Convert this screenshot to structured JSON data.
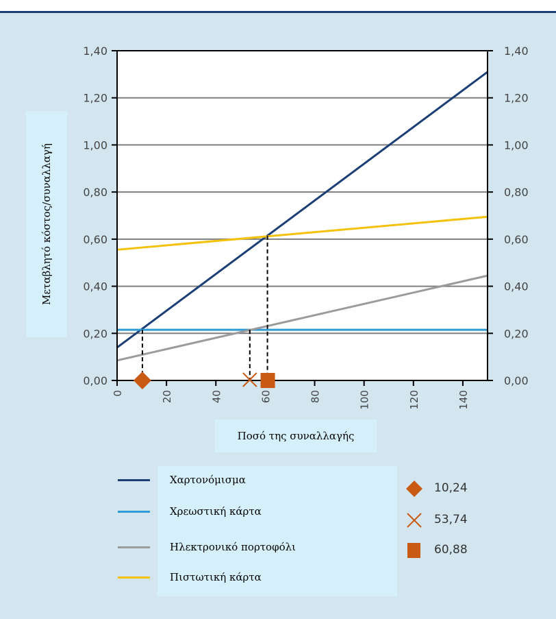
{
  "colors": {
    "background": "#d3e6ef",
    "label_box": "#d6f0fb",
    "top_line": "#1b3f75",
    "plot_bg": "#ffffff",
    "grid": "#7f7f7f",
    "marker": "#c85a14"
  },
  "chart_data": {
    "type": "line",
    "title": "",
    "xlabel": "Ποσό της συναλλαγής",
    "ylabel": "Μεταβλητό κόστος/συναλλαγή",
    "xlim": [
      0,
      150
    ],
    "ylim": [
      0,
      1.4
    ],
    "x_ticks": [
      "0",
      "20",
      "40",
      "60",
      "80",
      "100",
      "120",
      "140"
    ],
    "x_tick_values": [
      0,
      20,
      40,
      60,
      80,
      100,
      120,
      140
    ],
    "y_ticks": [
      "0,00",
      "0,20",
      "0,40",
      "0,60",
      "0,80",
      "1,00",
      "1,20",
      "1,40"
    ],
    "y_tick_values": [
      0,
      0.2,
      0.4,
      0.6,
      0.8,
      1.0,
      1.2,
      1.4
    ],
    "secondary_y_axis": true,
    "grid": "horizontal",
    "series": [
      {
        "name": "Χαρτονόμισμα",
        "color": "#1b3f75",
        "x": [
          0,
          150
        ],
        "y": [
          0.14,
          1.31
        ]
      },
      {
        "name": "Χρεωστική κάρτα",
        "color": "#2e9ad6",
        "x": [
          0,
          150
        ],
        "y": [
          0.215,
          0.215
        ]
      },
      {
        "name": "Ηλεκτρονικό πορτοφόλι",
        "color": "#9b9b9b",
        "x": [
          0,
          150
        ],
        "y": [
          0.085,
          0.445
        ]
      },
      {
        "name": "Πιστωτική κάρτα",
        "color": "#f4c20d",
        "x": [
          0,
          150
        ],
        "y": [
          0.555,
          0.695
        ]
      }
    ],
    "break_even_markers": [
      {
        "symbol": "diamond",
        "x": 10.24,
        "y_intersect": 0.215,
        "label": "10,24"
      },
      {
        "symbol": "cross",
        "x": 53.74,
        "y_intersect": 0.215,
        "label": "53,74"
      },
      {
        "symbol": "square",
        "x": 60.88,
        "y_intersect": 0.615,
        "label": "60,88"
      }
    ]
  }
}
